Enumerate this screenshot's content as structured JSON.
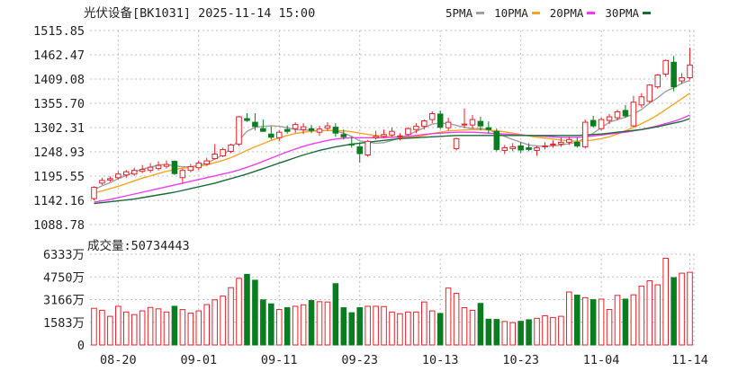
{
  "header": {
    "title": "光伏设备[BK1031] 2025-11-14 15:00",
    "legend": [
      {
        "label": "5PMA",
        "color": "#a0a0a0"
      },
      {
        "label": "10PMA",
        "color": "#f5a623"
      },
      {
        "label": "20PMA",
        "color": "#ee3cee"
      },
      {
        "label": "30PMA",
        "color": "#1b6b3a"
      }
    ]
  },
  "colors": {
    "up": "#e8212a",
    "down": "#0a7d20",
    "grid": "#bfbfbf",
    "wm": "#d0d0d0"
  },
  "volume_title": "成交量:50734443",
  "chart_data": [
    {
      "type": "candlestick",
      "ylim": [
        1088.78,
        1515.85
      ],
      "y_ticks": [
        "1515.85",
        "1462.47",
        "1409.08",
        "1355.70",
        "1302.31",
        "1248.93",
        "1195.55",
        "1142.16",
        "1088.78"
      ],
      "x_tick_labels": [
        "08-20",
        "09-01",
        "09-11",
        "09-23",
        "10-13",
        "10-23",
        "11-04",
        "11-14"
      ],
      "x_tick_index": [
        3,
        13,
        23,
        33,
        43,
        53,
        63,
        74
      ],
      "candles": [
        [
          1146,
          1173,
          1142,
          1171
        ],
        [
          1180,
          1192,
          1176,
          1186
        ],
        [
          1187,
          1195,
          1183,
          1190
        ],
        [
          1192,
          1206,
          1188,
          1200
        ],
        [
          1198,
          1209,
          1192,
          1205
        ],
        [
          1200,
          1214,
          1196,
          1208
        ],
        [
          1206,
          1220,
          1202,
          1210
        ],
        [
          1208,
          1224,
          1203,
          1215
        ],
        [
          1212,
          1228,
          1208,
          1219
        ],
        [
          1217,
          1230,
          1212,
          1221
        ],
        [
          1228,
          1230,
          1198,
          1201
        ],
        [
          1192,
          1212,
          1180,
          1208
        ],
        [
          1208,
          1222,
          1204,
          1216
        ],
        [
          1214,
          1230,
          1209,
          1224
        ],
        [
          1222,
          1236,
          1218,
          1229
        ],
        [
          1234,
          1266,
          1232,
          1244
        ],
        [
          1240,
          1258,
          1237,
          1254
        ],
        [
          1250,
          1267,
          1246,
          1264
        ],
        [
          1266,
          1328,
          1262,
          1326
        ],
        [
          1322,
          1334,
          1315,
          1318
        ],
        [
          1314,
          1334,
          1296,
          1305
        ],
        [
          1300,
          1320,
          1293,
          1294
        ],
        [
          1288,
          1305,
          1276,
          1281
        ],
        [
          1280,
          1296,
          1272,
          1292
        ],
        [
          1298,
          1307,
          1289,
          1294
        ],
        [
          1300,
          1314,
          1290,
          1309
        ],
        [
          1298,
          1312,
          1288,
          1304
        ],
        [
          1300,
          1308,
          1290,
          1296
        ],
        [
          1292,
          1306,
          1284,
          1299
        ],
        [
          1301,
          1314,
          1295,
          1306
        ],
        [
          1303,
          1312,
          1282,
          1290
        ],
        [
          1287,
          1298,
          1276,
          1282
        ],
        [
          1266,
          1282,
          1258,
          1264
        ],
        [
          1260,
          1270,
          1225,
          1245
        ],
        [
          1242,
          1275,
          1238,
          1272
        ],
        [
          1280,
          1295,
          1276,
          1283
        ],
        [
          1283,
          1298,
          1280,
          1287
        ],
        [
          1286,
          1302,
          1282,
          1294
        ],
        [
          1284,
          1290,
          1274,
          1284
        ],
        [
          1287,
          1303,
          1284,
          1300
        ],
        [
          1298,
          1312,
          1290,
          1305
        ],
        [
          1305,
          1320,
          1298,
          1317
        ],
        [
          1320,
          1338,
          1312,
          1333
        ],
        [
          1332,
          1340,
          1299,
          1303
        ],
        [
          1302,
          1324,
          1296,
          1314
        ],
        [
          1256,
          1280,
          1252,
          1278
        ],
        [
          1308,
          1344,
          1301,
          1310
        ],
        [
          1308,
          1330,
          1300,
          1320
        ],
        [
          1316,
          1326,
          1296,
          1306
        ],
        [
          1302,
          1316,
          1290,
          1298
        ],
        [
          1294,
          1300,
          1250,
          1254
        ],
        [
          1252,
          1264,
          1244,
          1258
        ],
        [
          1256,
          1268,
          1250,
          1260
        ],
        [
          1262,
          1270,
          1246,
          1253
        ],
        [
          1258,
          1268,
          1250,
          1254
        ],
        [
          1252,
          1262,
          1240,
          1258
        ],
        [
          1260,
          1270,
          1254,
          1262
        ],
        [
          1264,
          1274,
          1258,
          1266
        ],
        [
          1266,
          1280,
          1260,
          1270
        ],
        [
          1270,
          1282,
          1264,
          1276
        ],
        [
          1270,
          1280,
          1258,
          1262
        ],
        [
          1260,
          1320,
          1256,
          1314
        ],
        [
          1318,
          1328,
          1302,
          1306
        ],
        [
          1300,
          1324,
          1296,
          1320
        ],
        [
          1318,
          1332,
          1310,
          1326
        ],
        [
          1324,
          1342,
          1318,
          1337
        ],
        [
          1340,
          1352,
          1324,
          1328
        ],
        [
          1306,
          1372,
          1304,
          1358
        ],
        [
          1352,
          1378,
          1346,
          1370
        ],
        [
          1360,
          1398,
          1356,
          1396
        ],
        [
          1392,
          1420,
          1388,
          1418
        ],
        [
          1420,
          1452,
          1414,
          1450
        ],
        [
          1446,
          1460,
          1382,
          1392
        ],
        [
          1405,
          1422,
          1398,
          1412
        ],
        [
          1412,
          1478,
          1408,
          1440
        ]
      ],
      "ma": {
        "5PMA": [
          1166,
          1174,
          1181,
          1190,
          1197,
          1204,
          1211,
          1215,
          1220,
          1221,
          1218,
          1216,
          1216,
          1219,
          1224,
          1233,
          1242,
          1256,
          1275,
          1294,
          1303,
          1305,
          1306,
          1305,
          1302,
          1298,
          1297,
          1296,
          1295,
          1296,
          1295,
          1290,
          1283,
          1273,
          1270,
          1268,
          1269,
          1274,
          1280,
          1286,
          1294,
          1302,
          1310,
          1312,
          1311,
          1307,
          1303,
          1300,
          1300,
          1298,
          1290,
          1283,
          1276,
          1270,
          1264,
          1262,
          1261,
          1262,
          1264,
          1267,
          1270,
          1280,
          1290,
          1302,
          1314,
          1320,
          1325,
          1332,
          1342,
          1356,
          1368,
          1382,
          1390,
          1400,
          1406
        ],
        "10PMA": [
          1158,
          1163,
          1168,
          1173,
          1179,
          1185,
          1191,
          1196,
          1201,
          1206,
          1210,
          1213,
          1215,
          1217,
          1220,
          1225,
          1230,
          1236,
          1244,
          1252,
          1260,
          1267,
          1274,
          1280,
          1285,
          1289,
          1292,
          1294,
          1295,
          1296,
          1296,
          1295,
          1293,
          1290,
          1287,
          1285,
          1283,
          1282,
          1281,
          1281,
          1282,
          1285,
          1289,
          1292,
          1295,
          1296,
          1297,
          1298,
          1298,
          1297,
          1295,
          1293,
          1290,
          1287,
          1284,
          1281,
          1279,
          1277,
          1275,
          1273,
          1272,
          1273,
          1275,
          1278,
          1282,
          1288,
          1295,
          1303,
          1311,
          1320,
          1330,
          1342,
          1354,
          1366,
          1378
        ],
        "20PMA": [
          1138,
          1141,
          1144,
          1148,
          1152,
          1156,
          1160,
          1164,
          1168,
          1172,
          1176,
          1180,
          1184,
          1188,
          1192,
          1196,
          1200,
          1204,
          1209,
          1215,
          1221,
          1228,
          1235,
          1242,
          1249,
          1255,
          1261,
          1266,
          1270,
          1274,
          1277,
          1279,
          1280,
          1280,
          1280,
          1280,
          1280,
          1281,
          1282,
          1283,
          1285,
          1287,
          1289,
          1290,
          1291,
          1292,
          1292,
          1292,
          1291,
          1290,
          1289,
          1288,
          1287,
          1286,
          1285,
          1284,
          1283,
          1282,
          1281,
          1281,
          1281,
          1282,
          1284,
          1286,
          1288,
          1290,
          1292,
          1295,
          1298,
          1302,
          1306,
          1311,
          1316,
          1322,
          1330
        ],
        "30PMA": [
          1135,
          1137,
          1139,
          1141,
          1143,
          1145,
          1148,
          1151,
          1154,
          1157,
          1160,
          1164,
          1168,
          1172,
          1176,
          1180,
          1185,
          1190,
          1195,
          1200,
          1206,
          1212,
          1218,
          1224,
          1230,
          1236,
          1242,
          1247,
          1252,
          1256,
          1260,
          1263,
          1266,
          1268,
          1270,
          1272,
          1274,
          1276,
          1278,
          1279,
          1280,
          1281,
          1282,
          1283,
          1284,
          1285,
          1285,
          1285,
          1285,
          1285,
          1285,
          1285,
          1285,
          1285,
          1285,
          1285,
          1285,
          1285,
          1285,
          1285,
          1285,
          1286,
          1287,
          1288,
          1290,
          1292,
          1294,
          1296,
          1298,
          1301,
          1304,
          1308,
          1312,
          1316,
          1322
        ]
      }
    },
    {
      "type": "bar",
      "title": "成交量:50734443",
      "ylim": [
        0,
        6333
      ],
      "y_ticks": [
        "6333万",
        "4750万",
        "3166万",
        "1583万",
        "0"
      ],
      "values": [
        2560,
        2420,
        2000,
        2700,
        2300,
        2120,
        2380,
        2620,
        2520,
        2300,
        2700,
        2470,
        2220,
        2380,
        2820,
        3150,
        3410,
        4000,
        4650,
        4930,
        4520,
        3150,
        2870,
        2480,
        2600,
        2700,
        2800,
        3100,
        3020,
        3000,
        4280,
        2600,
        2250,
        2600,
        2700,
        2700,
        2680,
        2300,
        2180,
        2300,
        2300,
        3000,
        2380,
        2200,
        3970,
        3600,
        2600,
        2420,
        2900,
        1800,
        1780,
        1640,
        1560,
        1650,
        1760,
        1860,
        2040,
        1920,
        2000,
        3700,
        3480,
        3300,
        3160,
        3200,
        2480,
        3460,
        3200,
        3500,
        4100,
        4480,
        4200,
        6050,
        4700,
        5010,
        5073
      ]
    }
  ]
}
